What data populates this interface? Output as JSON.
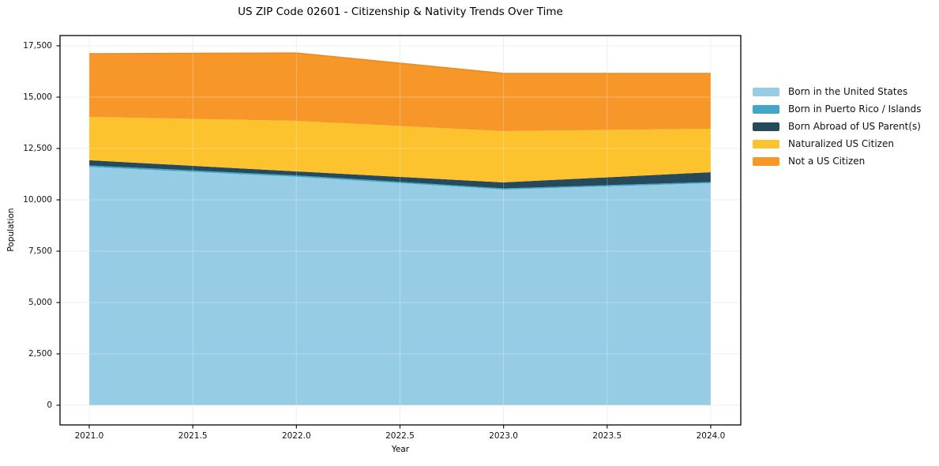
{
  "chart_data": {
    "type": "area",
    "stacked": true,
    "title": "US ZIP Code 02601 - Citizenship & Nativity Trends Over Time",
    "xlabel": "Year",
    "ylabel": "Population",
    "x": [
      2021,
      2022,
      2023,
      2024
    ],
    "series": [
      {
        "name": "Born in the United States",
        "color": "#96cde5",
        "values": [
          11600,
          11120,
          10500,
          10810
        ]
      },
      {
        "name": "Born in Puerto Rico / Islands",
        "color": "#41a8c8",
        "values": [
          75,
          70,
          60,
          60
        ]
      },
      {
        "name": "Born Abroad of US Parent(s)",
        "color": "#27495c",
        "values": [
          255,
          195,
          290,
          475
        ]
      },
      {
        "name": "Naturalized US Citizen",
        "color": "#fcc32e",
        "values": [
          2110,
          2460,
          2495,
          2115
        ]
      },
      {
        "name": "Not a US Citizen",
        "color": "#f7972a",
        "values": [
          3075,
          3305,
          2810,
          2695
        ]
      }
    ],
    "totals": [
      17115,
      17150,
      16155,
      16155
    ],
    "x_ticks": [
      {
        "v": 2021.0,
        "label": "2021.0"
      },
      {
        "v": 2021.5,
        "label": "2021.5"
      },
      {
        "v": 2022.0,
        "label": "2022.0"
      },
      {
        "v": 2022.5,
        "label": "2022.5"
      },
      {
        "v": 2023.0,
        "label": "2023.0"
      },
      {
        "v": 2023.5,
        "label": "2023.5"
      },
      {
        "v": 2024.0,
        "label": "2024.0"
      }
    ],
    "y_ticks": [
      {
        "v": 0,
        "label": "0"
      },
      {
        "v": 2500,
        "label": "2,500"
      },
      {
        "v": 5000,
        "label": "5,000"
      },
      {
        "v": 7500,
        "label": "7,500"
      },
      {
        "v": 10000,
        "label": "10,000"
      },
      {
        "v": 12500,
        "label": "12,500"
      },
      {
        "v": 15000,
        "label": "15,000"
      },
      {
        "v": 17500,
        "label": "17,500"
      }
    ],
    "xlim": [
      2020.859,
      2024.145
    ],
    "ylim": [
      -960,
      18000
    ],
    "grid": true,
    "legend_position": "right-outside",
    "colors": {
      "grid": "#e9e9e9",
      "grid_overlay": "rgba(255,255,255,0.28)",
      "frame": "#000000",
      "tick": "#000000",
      "edge_top": "#ea8b20"
    }
  }
}
